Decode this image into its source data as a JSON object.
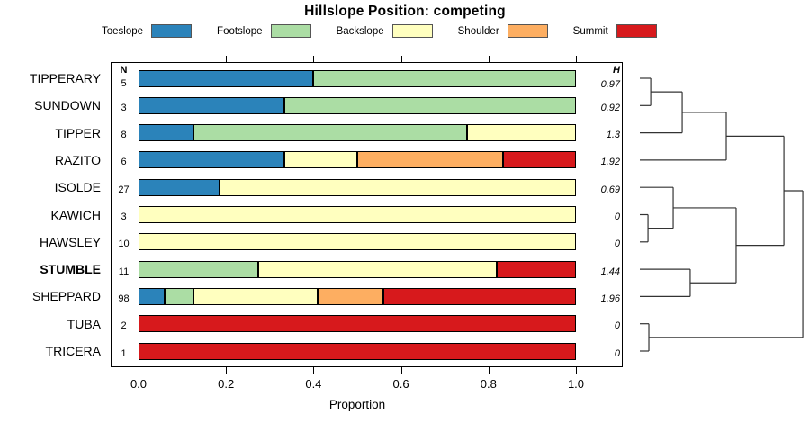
{
  "title": "Hillslope Position: competing",
  "columns": {
    "n_header": "N",
    "h_header": "H"
  },
  "legend": {
    "items": [
      {
        "label": "Toeslope",
        "color": "#2B83BA"
      },
      {
        "label": "Footslope",
        "color": "#ABDDA4"
      },
      {
        "label": "Backslope",
        "color": "#FFFFBF"
      },
      {
        "label": "Shoulder",
        "color": "#FDAE61"
      },
      {
        "label": "Summit",
        "color": "#D7191C"
      }
    ]
  },
  "chart_data": {
    "type": "bar",
    "variant": "stacked-horizontal-proportion",
    "title": "Hillslope Position: competing",
    "xlabel": "Proportion",
    "xlim": [
      0,
      1
    ],
    "x_ticks": [
      0,
      0.2,
      0.4,
      0.6,
      0.8,
      1.0
    ],
    "x_tick_labels": [
      "0.0",
      "0.2",
      "0.4",
      "0.6",
      "0.8",
      "1.0"
    ],
    "categories": [
      "Toeslope",
      "Footslope",
      "Backslope",
      "Shoulder",
      "Summit"
    ],
    "rows": [
      {
        "name": "TIPPERARY",
        "n": 5,
        "h": "0.97",
        "bold": false,
        "segments": [
          [
            "Toeslope",
            0.4
          ],
          [
            "Footslope",
            0.6
          ]
        ]
      },
      {
        "name": "SUNDOWN",
        "n": 3,
        "h": "0.92",
        "bold": false,
        "segments": [
          [
            "Toeslope",
            0.333
          ],
          [
            "Footslope",
            0.667
          ]
        ]
      },
      {
        "name": "TIPPER",
        "n": 8,
        "h": "1.3",
        "bold": false,
        "segments": [
          [
            "Toeslope",
            0.125
          ],
          [
            "Footslope",
            0.625
          ],
          [
            "Backslope",
            0.25
          ]
        ]
      },
      {
        "name": "RAZITO",
        "n": 6,
        "h": "1.92",
        "bold": false,
        "segments": [
          [
            "Toeslope",
            0.333
          ],
          [
            "Backslope",
            0.167
          ],
          [
            "Shoulder",
            0.333
          ],
          [
            "Summit",
            0.167
          ]
        ]
      },
      {
        "name": "ISOLDE",
        "n": 27,
        "h": "0.69",
        "bold": false,
        "segments": [
          [
            "Toeslope",
            0.185
          ],
          [
            "Backslope",
            0.815
          ]
        ]
      },
      {
        "name": "KAWICH",
        "n": 3,
        "h": "0",
        "bold": false,
        "segments": [
          [
            "Backslope",
            1
          ]
        ]
      },
      {
        "name": "HAWSLEY",
        "n": 10,
        "h": "0",
        "bold": false,
        "segments": [
          [
            "Backslope",
            1
          ]
        ]
      },
      {
        "name": "STUMBLE",
        "n": 11,
        "h": "1.44",
        "bold": true,
        "segments": [
          [
            "Footslope",
            0.273
          ],
          [
            "Backslope",
            0.545
          ],
          [
            "Summit",
            0.182
          ]
        ]
      },
      {
        "name": "SHEPPARD",
        "n": 98,
        "h": "1.96",
        "bold": false,
        "segments": [
          [
            "Toeslope",
            0.06
          ],
          [
            "Footslope",
            0.065
          ],
          [
            "Backslope",
            0.285
          ],
          [
            "Shoulder",
            0.15
          ],
          [
            "Summit",
            0.44
          ]
        ]
      },
      {
        "name": "TUBA",
        "n": 2,
        "h": "0",
        "bold": false,
        "segments": [
          [
            "Summit",
            1
          ]
        ]
      },
      {
        "name": "TRICERA",
        "n": 1,
        "h": "0",
        "bold": false,
        "segments": [
          [
            "Summit",
            1
          ]
        ]
      }
    ],
    "dendrogram": {
      "merges": [
        {
          "a": "TIPPERARY",
          "b": "SUNDOWN",
          "height": 0.064
        },
        {
          "a": "m0",
          "b": "TIPPER",
          "height": 0.249
        },
        {
          "a": "m1",
          "b": "RAZITO",
          "height": 0.508
        },
        {
          "a": "KAWICH",
          "b": "HAWSLEY",
          "height": 0.048
        },
        {
          "a": "ISOLDE",
          "b": "m3",
          "height": 0.196
        },
        {
          "a": "STUMBLE",
          "b": "SHEPPARD",
          "height": 0.296
        },
        {
          "a": "m4",
          "b": "m5",
          "height": 0.566
        },
        {
          "a": "m2",
          "b": "m6",
          "height": 0.847
        },
        {
          "a": "TUBA",
          "b": "TRICERA",
          "height": 0.053
        },
        {
          "a": "m7",
          "b": "m8",
          "height": 0.958
        }
      ]
    }
  }
}
